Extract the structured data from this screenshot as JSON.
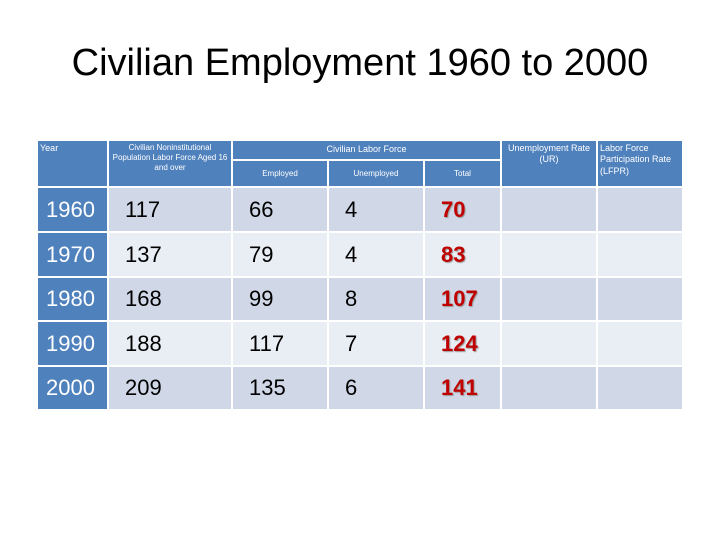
{
  "title": "Civilian Employment 1960 to 2000",
  "table": {
    "headers": {
      "year": "Year",
      "population": "Civilian Noninstitutional Population Labor Force Aged 16 and over",
      "labor_force": "Civilian Labor Force",
      "employed": "Employed",
      "unemployed": "Unemployed",
      "total": "Total",
      "ur": "Unemployment Rate (UR)",
      "lfpr": "Labor Force Participation Rate (LFPR)"
    },
    "rows": [
      [
        1960,
        117,
        66,
        4,
        70
      ],
      [
        1970,
        137,
        79,
        4,
        83
      ],
      [
        1980,
        168,
        99,
        8,
        107
      ],
      [
        1990,
        188,
        117,
        7,
        124
      ],
      [
        2000,
        209,
        135,
        6,
        141
      ]
    ]
  }
}
